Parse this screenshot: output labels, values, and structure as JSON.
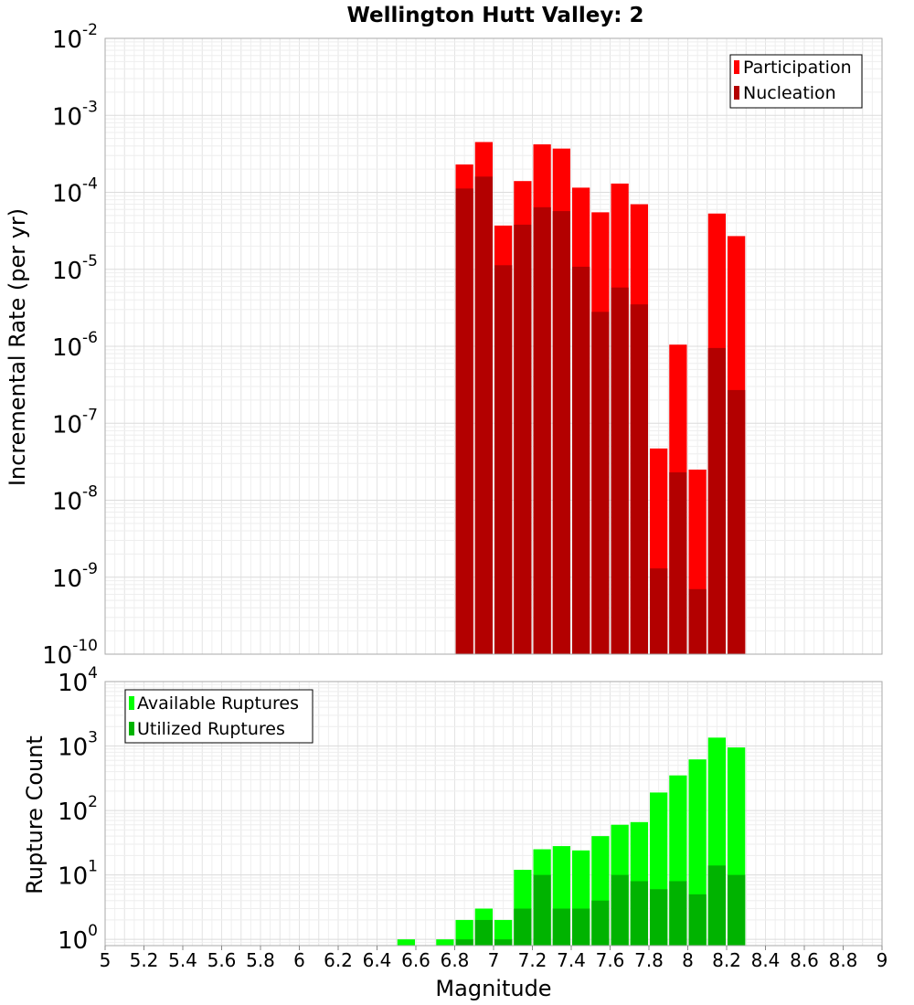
{
  "chart_data": [
    {
      "type": "bar",
      "title": "Wellington Hutt Valley: 2",
      "xlabel": "Magnitude",
      "ylabel": "Incremental Rate (per yr)",
      "yscale": "log",
      "ylim": [
        1e-10,
        0.01
      ],
      "xlim": [
        5,
        9
      ],
      "grid": true,
      "legend_position": "top-right",
      "y_tick_exponents": [
        -10,
        -9,
        -8,
        -7,
        -6,
        -5,
        -4,
        -3,
        -2
      ],
      "series": [
        {
          "name": "Participation",
          "color": "#ff0000",
          "x": [
            6.85,
            6.95,
            7.05,
            7.15,
            7.25,
            7.35,
            7.45,
            7.55,
            7.65,
            7.75,
            7.85,
            7.95,
            8.05,
            8.15,
            8.25
          ],
          "values": [
            0.00023,
            0.00045,
            3.7e-05,
            0.00014,
            0.00042,
            0.00037,
            0.000115,
            5.5e-05,
            0.00013,
            7e-05,
            4.7e-08,
            1.05e-06,
            2.5e-08,
            5.3e-05,
            2.7e-05
          ]
        },
        {
          "name": "Nucleation",
          "color": "#b30000",
          "x": [
            6.85,
            6.95,
            7.05,
            7.15,
            7.25,
            7.35,
            7.45,
            7.55,
            7.65,
            7.75,
            7.85,
            7.95,
            8.05,
            8.15,
            8.25
          ],
          "values": [
            0.000112,
            0.00016,
            1.13e-05,
            3.8e-05,
            6.4e-05,
            5.7e-05,
            1.08e-05,
            2.8e-06,
            5.8e-06,
            3.5e-06,
            1.3e-09,
            2.3e-08,
            7e-10,
            9.5e-07,
            2.7e-07
          ]
        }
      ]
    },
    {
      "type": "bar",
      "xlabel": "Magnitude",
      "ylabel": "Rupture Count",
      "yscale": "log",
      "ylim": [
        0.8,
        10000
      ],
      "xlim": [
        5,
        9
      ],
      "grid": true,
      "legend_position": "top-left",
      "y_tick_exponents": [
        0,
        1,
        2,
        3,
        4
      ],
      "x_ticks": [
        "5",
        "5.2",
        "5.4",
        "5.6",
        "5.8",
        "6",
        "6.2",
        "6.4",
        "6.6",
        "6.8",
        "7",
        "7.2",
        "7.4",
        "7.6",
        "7.8",
        "8",
        "8.2",
        "8.4",
        "8.6",
        "8.8",
        "9"
      ],
      "series": [
        {
          "name": "Available Ruptures",
          "color": "#00ff00",
          "x": [
            6.55,
            6.75,
            6.85,
            6.95,
            7.05,
            7.15,
            7.25,
            7.35,
            7.45,
            7.55,
            7.65,
            7.75,
            7.85,
            7.95,
            8.05,
            8.15,
            8.25
          ],
          "values": [
            1,
            1,
            2,
            3,
            2,
            12,
            25,
            28,
            24,
            40,
            60,
            66,
            190,
            350,
            620,
            1350,
            950
          ]
        },
        {
          "name": "Utilized Ruptures",
          "color": "#00b300",
          "x": [
            6.85,
            6.95,
            7.05,
            7.15,
            7.25,
            7.35,
            7.45,
            7.55,
            7.65,
            7.75,
            7.85,
            7.95,
            8.05,
            8.15,
            8.25
          ],
          "values": [
            1,
            2,
            1,
            3,
            10,
            3,
            3,
            4,
            10,
            8,
            6,
            8,
            5,
            14,
            10
          ]
        }
      ]
    }
  ]
}
